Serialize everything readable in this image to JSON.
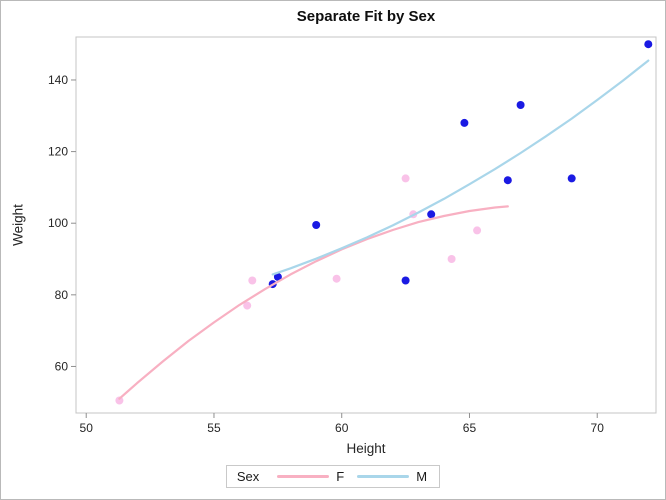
{
  "figure": {
    "title": "Separate Fit by Sex"
  },
  "chart_data": {
    "type": "scatter",
    "title": "Separate Fit by Sex",
    "xlabel": "Height",
    "ylabel": "Weight",
    "xlim": [
      49.6,
      72.3
    ],
    "ylim": [
      47,
      152
    ],
    "x_ticks": [
      50,
      55,
      60,
      65,
      70
    ],
    "y_ticks": [
      60,
      80,
      100,
      120,
      140
    ],
    "grid": false,
    "legend": {
      "title": "Sex",
      "position": "bottom",
      "entries": [
        {
          "label": "F",
          "color": "#f8b0c2"
        },
        {
          "label": "M",
          "color": "#a9d6ea"
        }
      ]
    },
    "series": [
      {
        "name": "F",
        "kind": "scatter",
        "marker_color": "#f9c2e8",
        "points": [
          [
            51.3,
            50.5
          ],
          [
            56.3,
            77
          ],
          [
            56.5,
            84
          ],
          [
            59.8,
            84.5
          ],
          [
            62.5,
            112.5
          ],
          [
            62.8,
            102.5
          ],
          [
            64.3,
            90
          ],
          [
            65.3,
            98
          ],
          [
            66.5,
            112
          ]
        ]
      },
      {
        "name": "M",
        "kind": "scatter",
        "marker_color": "#1a1ae3",
        "points": [
          [
            57.3,
            83
          ],
          [
            57.5,
            85
          ],
          [
            59,
            99.5
          ],
          [
            62.5,
            84
          ],
          [
            63.5,
            102.5
          ],
          [
            64.8,
            128
          ],
          [
            66.5,
            112
          ],
          [
            67,
            133
          ],
          [
            69,
            112.5
          ],
          [
            72,
            150
          ]
        ]
      },
      {
        "name": "F",
        "kind": "fit-line",
        "color": "#f8b0c2",
        "points": [
          [
            51.3,
            51.0
          ],
          [
            52,
            55.4
          ],
          [
            53,
            61.4
          ],
          [
            54,
            67.1
          ],
          [
            55,
            72.3
          ],
          [
            56,
            77.2
          ],
          [
            57,
            81.6
          ],
          [
            58,
            85.7
          ],
          [
            59,
            89.4
          ],
          [
            60,
            92.7
          ],
          [
            61,
            95.6
          ],
          [
            62,
            98.1
          ],
          [
            63,
            100.3
          ],
          [
            64,
            102.0
          ],
          [
            65,
            103.4
          ],
          [
            66,
            104.4
          ],
          [
            66.5,
            104.7
          ]
        ]
      },
      {
        "name": "M",
        "kind": "fit-line",
        "color": "#a9d6ea",
        "points": [
          [
            57.3,
            85.7
          ],
          [
            58,
            87.4
          ],
          [
            59,
            90.1
          ],
          [
            60,
            93.0
          ],
          [
            61,
            96.1
          ],
          [
            62,
            99.4
          ],
          [
            63,
            103.0
          ],
          [
            64,
            106.8
          ],
          [
            65,
            110.9
          ],
          [
            66,
            115.1
          ],
          [
            67,
            119.6
          ],
          [
            68,
            124.3
          ],
          [
            69,
            129.2
          ],
          [
            70,
            134.4
          ],
          [
            71,
            139.8
          ],
          [
            72,
            145.4
          ]
        ]
      }
    ]
  }
}
